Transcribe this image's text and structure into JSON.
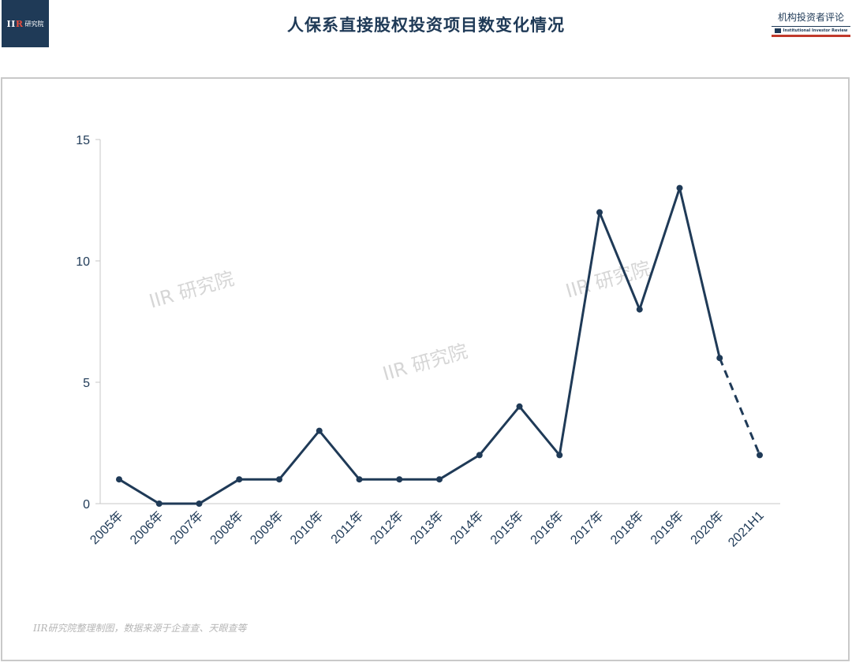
{
  "header": {
    "title": "人保系直接股权投资项目数变化情况",
    "left_logo": {
      "mark_main": "II",
      "mark_accent": "R",
      "text": "研究院"
    },
    "right_logo": {
      "cn": "机构投资者评论",
      "en": "Institutional Investor Review"
    }
  },
  "watermarks": [
    "IIR 研究院",
    "IIR 研究院",
    "IIR 研究院"
  ],
  "footnote": "IIR研究院整理制图，数据来源于企查查、天眼查等",
  "colors": {
    "line": "#1f3a57",
    "axis": "#c7c7c7",
    "tick_text": "#1f3a57",
    "watermark": "#d6d6d6",
    "accent": "#c0392b"
  },
  "chart_data": {
    "type": "line",
    "title": "",
    "xlabel": "",
    "ylabel": "",
    "categories": [
      "2005年",
      "2006年",
      "2007年",
      "2008年",
      "2009年",
      "2010年",
      "2011年",
      "2012年",
      "2013年",
      "2014年",
      "2015年",
      "2016年",
      "2017年",
      "2018年",
      "2019年",
      "2020年",
      "2021H1"
    ],
    "series": [
      {
        "values": [
          1,
          0,
          0,
          1,
          1,
          3,
          1,
          1,
          1,
          2,
          4,
          2,
          12,
          8,
          13,
          6,
          2
        ],
        "dashed_from_index": 15
      }
    ],
    "ylim": [
      0,
      15
    ],
    "yticks": [
      0,
      5,
      10,
      15
    ],
    "grid": false,
    "legend": "none"
  }
}
